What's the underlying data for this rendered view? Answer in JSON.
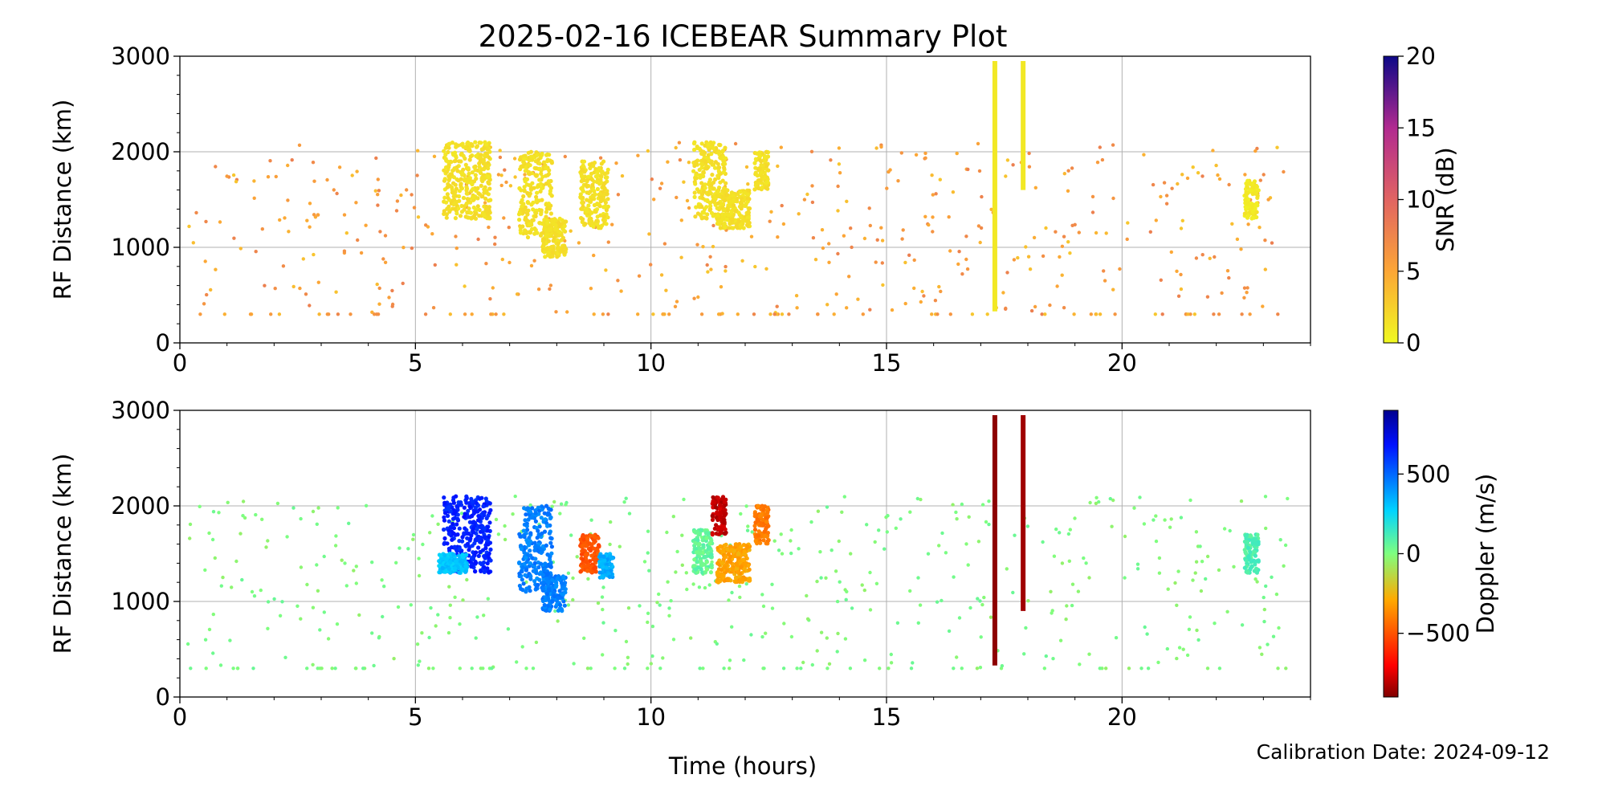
{
  "title": "2025-02-16 ICEBEAR Summary Plot",
  "footer": "Calibration Date: 2024-09-12",
  "xlabel": "Time (hours)",
  "chart_data": [
    {
      "type": "scatter",
      "panel": "top",
      "color_variable": "SNR (dB)",
      "ylabel": "RF Distance (km)",
      "xlim": [
        0,
        24
      ],
      "ylim": [
        0,
        3000
      ],
      "x_ticks": [
        0,
        5,
        10,
        15,
        20
      ],
      "y_ticks": [
        0,
        1000,
        2000,
        3000
      ],
      "grid": true,
      "colorbar": {
        "label": "SNR (dB)",
        "range": [
          0,
          20
        ],
        "ticks": [
          0,
          5,
          10,
          15,
          20
        ],
        "colormap": "plasma_r"
      },
      "clusters": [
        {
          "t_range": [
            5.6,
            6.6
          ],
          "r_range": [
            1300,
            2100
          ],
          "value": 1.5
        },
        {
          "t_range": [
            7.2,
            7.9
          ],
          "r_range": [
            1100,
            2000
          ],
          "value": 1.5
        },
        {
          "t_range": [
            7.7,
            8.2
          ],
          "r_range": [
            900,
            1300
          ],
          "value": 1.5
        },
        {
          "t_range": [
            8.5,
            9.1
          ],
          "r_range": [
            1200,
            1900
          ],
          "value": 1.5
        },
        {
          "t_range": [
            10.9,
            11.6
          ],
          "r_range": [
            1300,
            2100
          ],
          "value": 1.5
        },
        {
          "t_range": [
            11.4,
            12.1
          ],
          "r_range": [
            1200,
            1600
          ],
          "value": 1.5
        },
        {
          "t_range": [
            12.2,
            12.5
          ],
          "r_range": [
            1600,
            2000
          ],
          "value": 1.5
        },
        {
          "t_range": [
            22.6,
            22.9
          ],
          "r_range": [
            1300,
            1700
          ],
          "value": 1.0
        }
      ],
      "vertical_streaks": [
        {
          "t": 17.3,
          "r_range": [
            330,
            2950
          ],
          "value": 1.0
        },
        {
          "t": 17.9,
          "r_range": [
            1600,
            2950
          ],
          "value": 1.0
        }
      ],
      "scatter_background": {
        "t_range": [
          0,
          24
        ],
        "r_range": [
          300,
          2100
        ],
        "value_range": [
          3,
          8
        ]
      }
    },
    {
      "type": "scatter",
      "panel": "bottom",
      "color_variable": "Doppler (m/s)",
      "ylabel": "RF Distance (km)",
      "xlim": [
        0,
        24
      ],
      "ylim": [
        0,
        3000
      ],
      "x_ticks": [
        0,
        5,
        10,
        15,
        20
      ],
      "y_ticks": [
        0,
        1000,
        2000,
        3000
      ],
      "grid": true,
      "colorbar": {
        "label": "Doppler (m/s)",
        "range": [
          -900,
          900
        ],
        "ticks": [
          500,
          0,
          -500
        ],
        "colormap": "jet_r"
      },
      "clusters": [
        {
          "t_range": [
            5.6,
            6.6
          ],
          "r_range": [
            1300,
            2100
          ],
          "value": 650
        },
        {
          "t_range": [
            5.5,
            6.1
          ],
          "r_range": [
            1300,
            1500
          ],
          "value": 300
        },
        {
          "t_range": [
            7.2,
            7.9
          ],
          "r_range": [
            1100,
            2000
          ],
          "value": 450
        },
        {
          "t_range": [
            7.7,
            8.2
          ],
          "r_range": [
            900,
            1300
          ],
          "value": 450
        },
        {
          "t_range": [
            8.5,
            8.9
          ],
          "r_range": [
            1300,
            1700
          ],
          "value": -500
        },
        {
          "t_range": [
            8.9,
            9.2
          ],
          "r_range": [
            1250,
            1500
          ],
          "value": 350
        },
        {
          "t_range": [
            10.9,
            11.3
          ],
          "r_range": [
            1300,
            1750
          ],
          "value": 50
        },
        {
          "t_range": [
            11.3,
            11.6
          ],
          "r_range": [
            1700,
            2100
          ],
          "value": -800
        },
        {
          "t_range": [
            11.4,
            12.1
          ],
          "r_range": [
            1200,
            1600
          ],
          "value": -300
        },
        {
          "t_range": [
            12.2,
            12.5
          ],
          "r_range": [
            1600,
            2000
          ],
          "value": -400
        },
        {
          "t_range": [
            22.6,
            22.9
          ],
          "r_range": [
            1300,
            1700
          ],
          "value": 100
        }
      ],
      "vertical_streaks": [
        {
          "t": 17.3,
          "r_range": [
            330,
            2950
          ],
          "value": -880
        },
        {
          "t": 17.9,
          "r_range": [
            900,
            2950
          ],
          "value": -850
        }
      ],
      "scatter_background": {
        "t_range": [
          0,
          24
        ],
        "r_range": [
          300,
          2100
        ],
        "value_range": [
          -50,
          50
        ]
      }
    }
  ]
}
